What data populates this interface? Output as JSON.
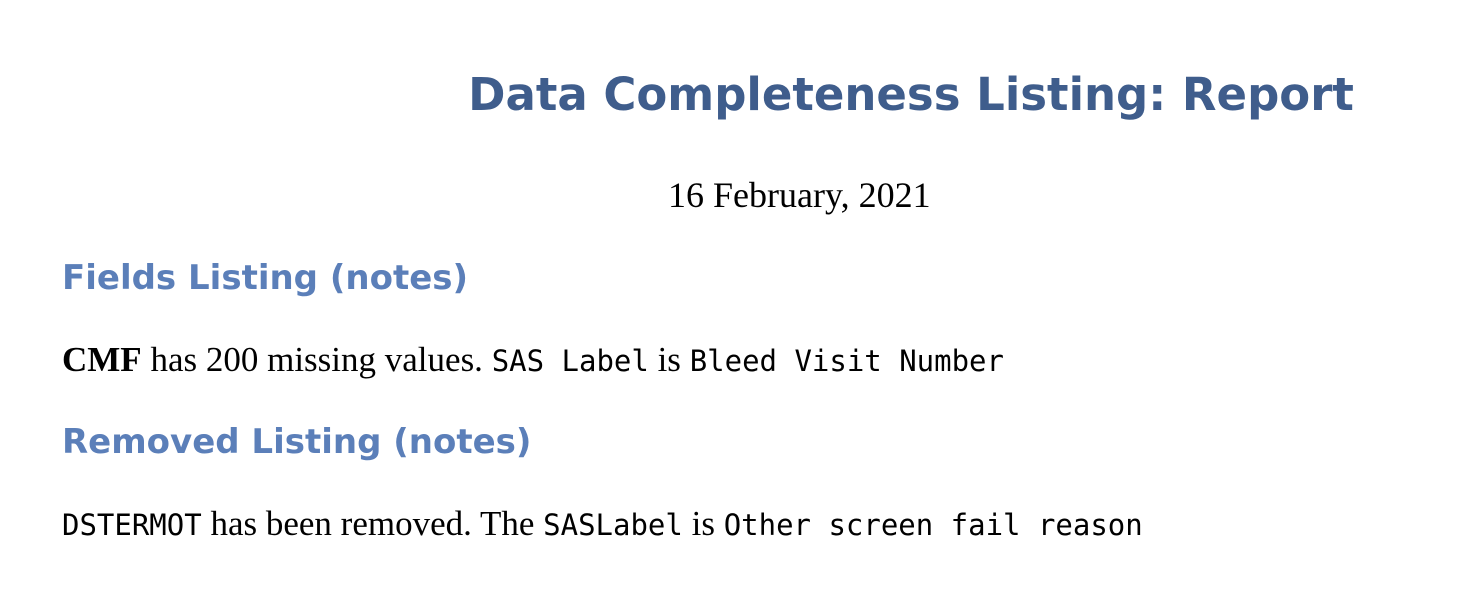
{
  "title": "Data Completeness Listing: Report",
  "date": "16 February, 2021",
  "fields_section": {
    "heading": "Fields Listing (notes)",
    "field_name": "CMF",
    "text_1": " has 200 missing values. ",
    "sas_label_term": "SAS Label",
    "text_2": " is ",
    "sas_label_value": "Bleed Visit Number"
  },
  "removed_section": {
    "heading": "Removed Listing (notes)",
    "field_name": "DSTERMOT",
    "text_1": " has been removed. The ",
    "sas_label_term": "SASLabel",
    "text_2": " is ",
    "sas_label_value": "Other screen fail reason"
  }
}
